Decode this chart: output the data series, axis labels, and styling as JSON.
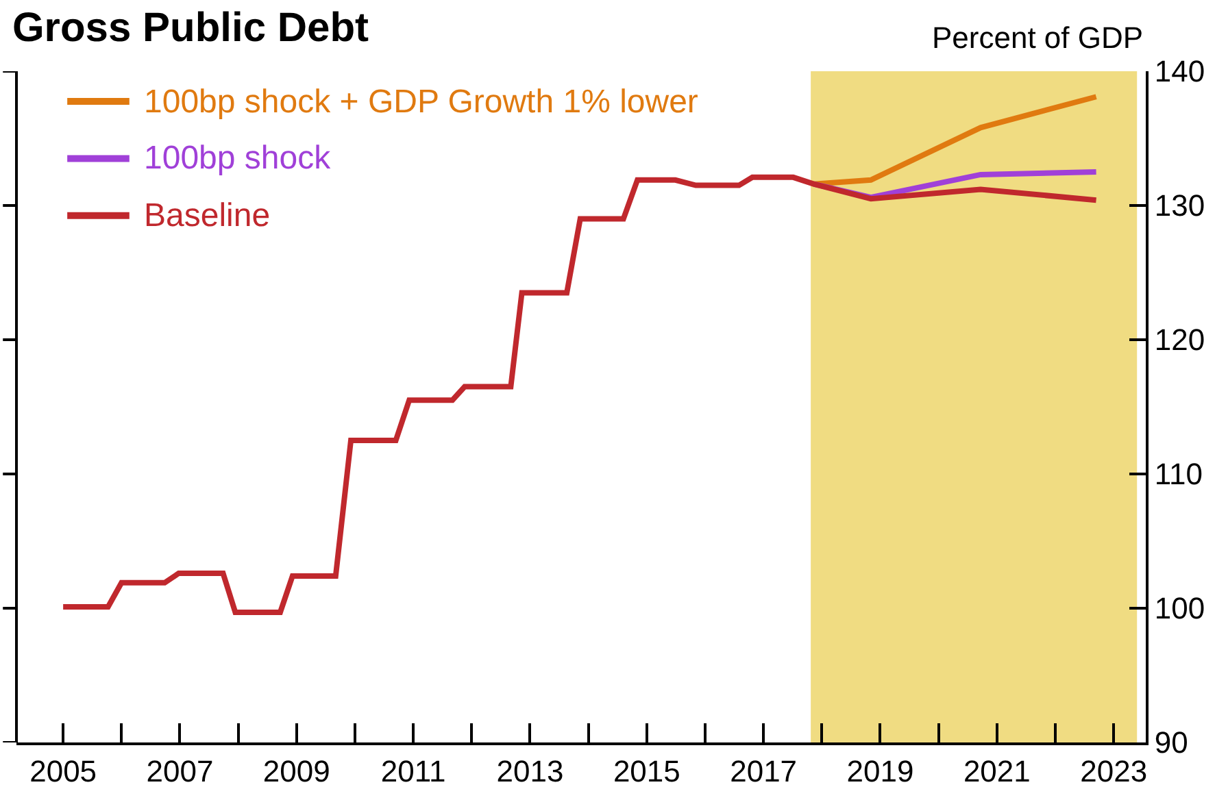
{
  "chart_data": {
    "type": "line",
    "title": "Gross Public Debt",
    "ylabel": "Percent of GDP",
    "xlim": [
      2004.2,
      2023.55
    ],
    "xticks": [
      2005,
      {
        "value": 2006,
        "label": null
      },
      2007,
      {
        "value": 2008,
        "label": null
      },
      2009,
      {
        "value": 2010,
        "label": null
      },
      2011,
      {
        "value": 2012,
        "label": null
      },
      2013,
      {
        "value": 2014,
        "label": null
      },
      2015,
      {
        "value": 2016,
        "label": null
      },
      2017,
      {
        "value": 2018,
        "label": null
      },
      2019,
      {
        "value": 2020,
        "label": null
      },
      2021,
      {
        "value": 2022,
        "label": null
      },
      2023
    ],
    "ylim": [
      90,
      140
    ],
    "yticks": [
      90,
      100,
      110,
      120,
      130,
      140
    ],
    "grid": false,
    "legend": "top left",
    "line_style": "solid",
    "bands": [
      {
        "axis": "x",
        "from": 2017.81,
        "to": 2023.4,
        "color": "#f0dc82"
      }
    ],
    "series": [
      {
        "name": "100bp shock + GDP Growth 1% lower",
        "color": "#e07a10",
        "x": [
          2017.86,
          2018.84,
          2020.72,
          2022.7
        ],
        "values": [
          131.6,
          131.9,
          135.8,
          138.1
        ]
      },
      {
        "name": "100bp shock",
        "color": "#a040d8",
        "x": [
          2017.86,
          2018.84,
          2020.72,
          2022.7
        ],
        "values": [
          131.6,
          130.6,
          132.3,
          132.5
        ]
      },
      {
        "name": "Baseline",
        "color": "#c0282d",
        "x": [
          2005.0,
          2005.77,
          2006.0,
          2006.74,
          2006.98,
          2007.74,
          2007.95,
          2008.72,
          2008.93,
          2009.67,
          2009.93,
          2010.7,
          2010.93,
          2011.67,
          2011.88,
          2012.67,
          2012.86,
          2013.63,
          2013.86,
          2014.6,
          2014.84,
          2015.49,
          2015.84,
          2016.58,
          2016.81,
          2017.51,
          2017.86,
          2018.84,
          2020.72,
          2022.7
        ],
        "values": [
          100.1,
          100.1,
          101.9,
          101.9,
          102.6,
          102.6,
          99.7,
          99.7,
          102.4,
          102.4,
          112.5,
          112.5,
          115.5,
          115.5,
          116.5,
          116.5,
          123.5,
          123.5,
          129.0,
          129.0,
          131.9,
          131.9,
          131.5,
          131.5,
          132.1,
          132.1,
          131.6,
          130.5,
          131.2,
          130.4
        ]
      }
    ]
  }
}
